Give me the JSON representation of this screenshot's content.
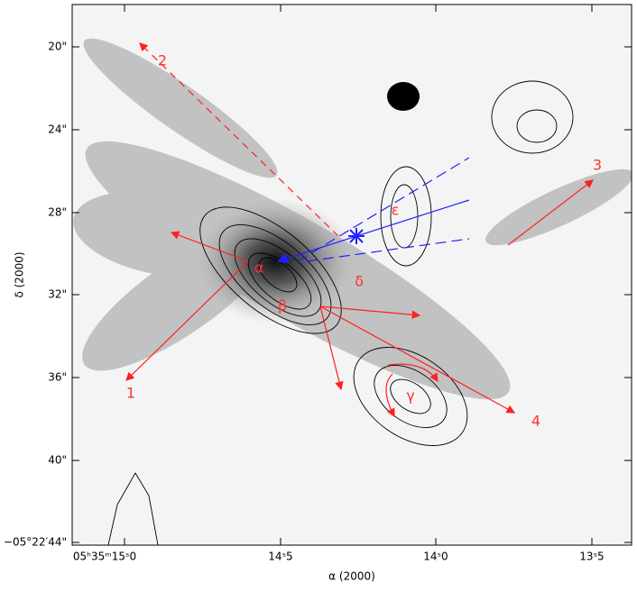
{
  "axes": {
    "x_label": "α (2000)",
    "y_label": "δ (2000)",
    "x_ticks": [
      "05ʰ35ᵐ15ˢ0",
      "14ˢ5",
      "14ˢ0",
      "13ˢ5"
    ],
    "y_ticks": [
      "20\"",
      "24\"",
      "28\"",
      "32\"",
      "36\"",
      "40\"",
      "−05°22′44\""
    ]
  },
  "annotations": {
    "outflows": [
      "1",
      "2",
      "3",
      "4"
    ],
    "sources": [
      "α",
      "β",
      "γ",
      "δ",
      "ε"
    ]
  }
}
